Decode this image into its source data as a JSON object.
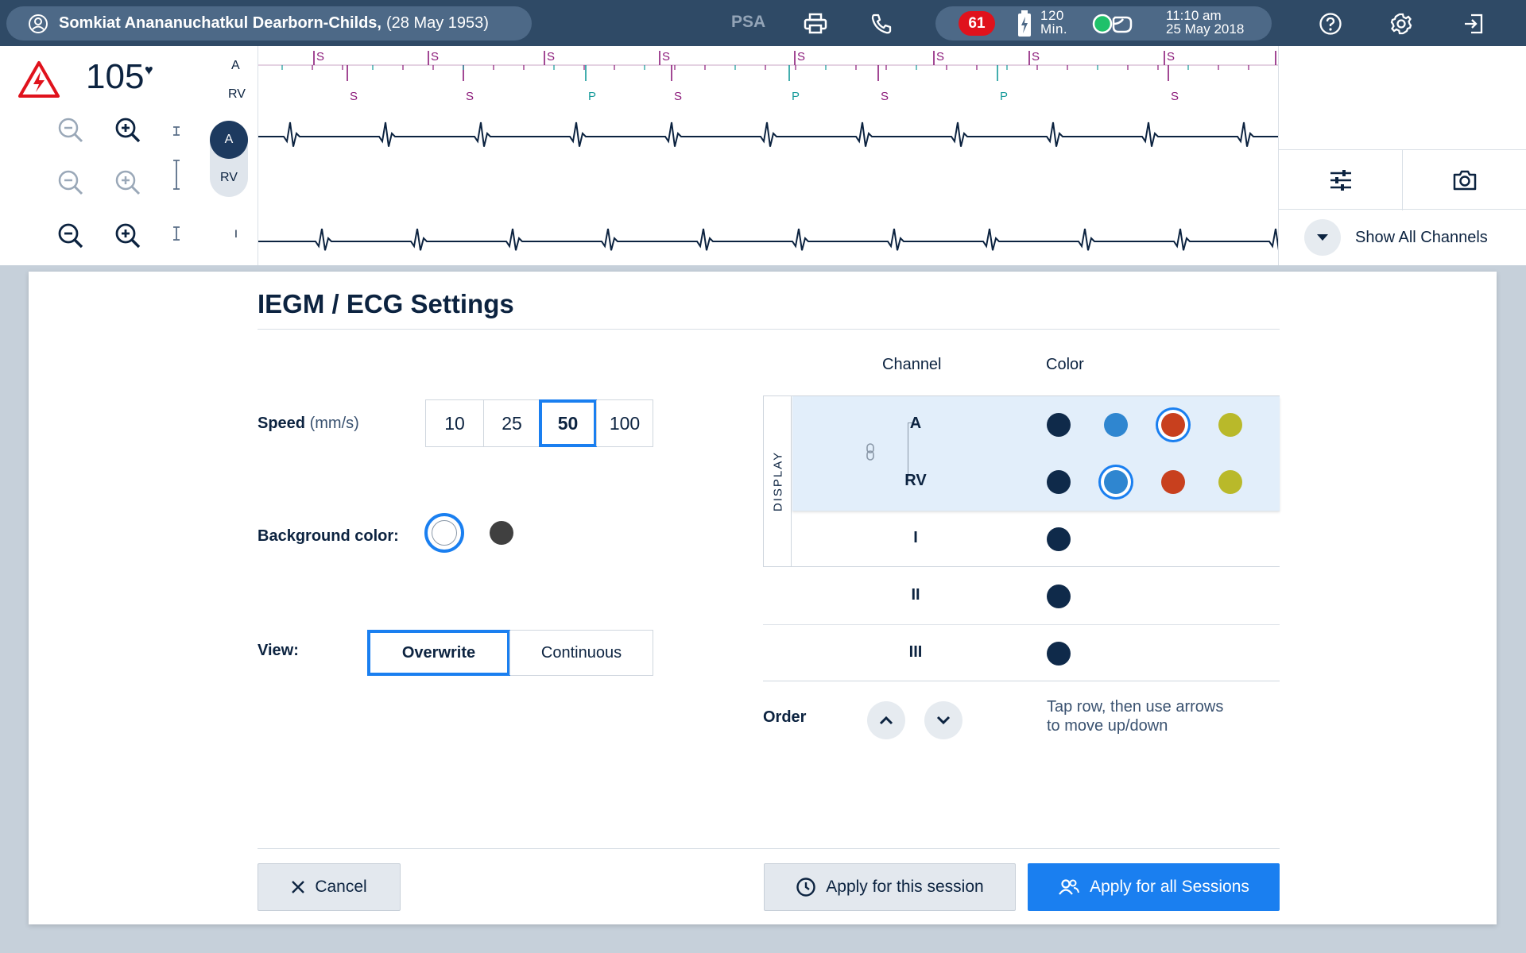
{
  "topbar": {
    "patient_name": "Somkiat Anananuchatkul Dearborn-Childs,",
    "patient_dob": "(28 May 1953)",
    "psa_label": "PSA",
    "heart_rate_badge": "61",
    "battery_value": "120",
    "battery_unit": "Min.",
    "time": "11:10 am",
    "date": "25 May 2018",
    "icons": [
      "user-icon",
      "printer-icon",
      "phone-icon",
      "battery-icon",
      "connection-icon",
      "help-icon",
      "gear-icon",
      "exit-icon"
    ]
  },
  "strip": {
    "heart_rate": "105",
    "heart_symbol": "♥",
    "channel_labels": [
      "A",
      "RV"
    ],
    "toggle_on": "A",
    "toggle_off": "RV",
    "lead_label": "I",
    "marker_s": "S",
    "marker_p": "P",
    "show_all_channels": "Show All Channels"
  },
  "dialog": {
    "title": "IEGM / ECG Settings",
    "speed_label": "Speed",
    "speed_unit": "(mm/s)",
    "speed_options": [
      "10",
      "25",
      "50",
      "100"
    ],
    "speed_selected": "50",
    "background_label": "Background color:",
    "background_options": [
      "white",
      "dark-grey"
    ],
    "background_selected": "white",
    "view_label": "View:",
    "view_options": [
      "Overwrite",
      "Continuous"
    ],
    "view_selected": "Overwrite",
    "channel_header": "Channel",
    "color_header": "Color",
    "display_label": "DISPLAY",
    "channels": [
      {
        "name": "A",
        "colors": [
          "#0f2a4a",
          "#2f86d0",
          "#c8401e",
          "#b9b92a"
        ],
        "selected": 2
      },
      {
        "name": "RV",
        "colors": [
          "#0f2a4a",
          "#2f86d0",
          "#c8401e",
          "#b9b92a"
        ],
        "selected": 1
      },
      {
        "name": "I",
        "colors": [
          "#0f2a4a"
        ],
        "selected": 0
      },
      {
        "name": "II",
        "colors": [
          "#0f2a4a"
        ],
        "selected": 0
      },
      {
        "name": "III",
        "colors": [
          "#0f2a4a"
        ],
        "selected": 0
      }
    ],
    "order_label": "Order",
    "order_hint_line1": "Tap row, then use arrows",
    "order_hint_line2": "to move up/down",
    "cancel_label": "Cancel",
    "apply_session_label": "Apply for this session",
    "apply_all_label": "Apply for all Sessions"
  },
  "colors": {
    "accent": "#1a7ff0",
    "topbar": "#2f4a66",
    "navy": "#0c2340",
    "marker_s": "#8b1a7a",
    "marker_p": "#159a9a"
  }
}
